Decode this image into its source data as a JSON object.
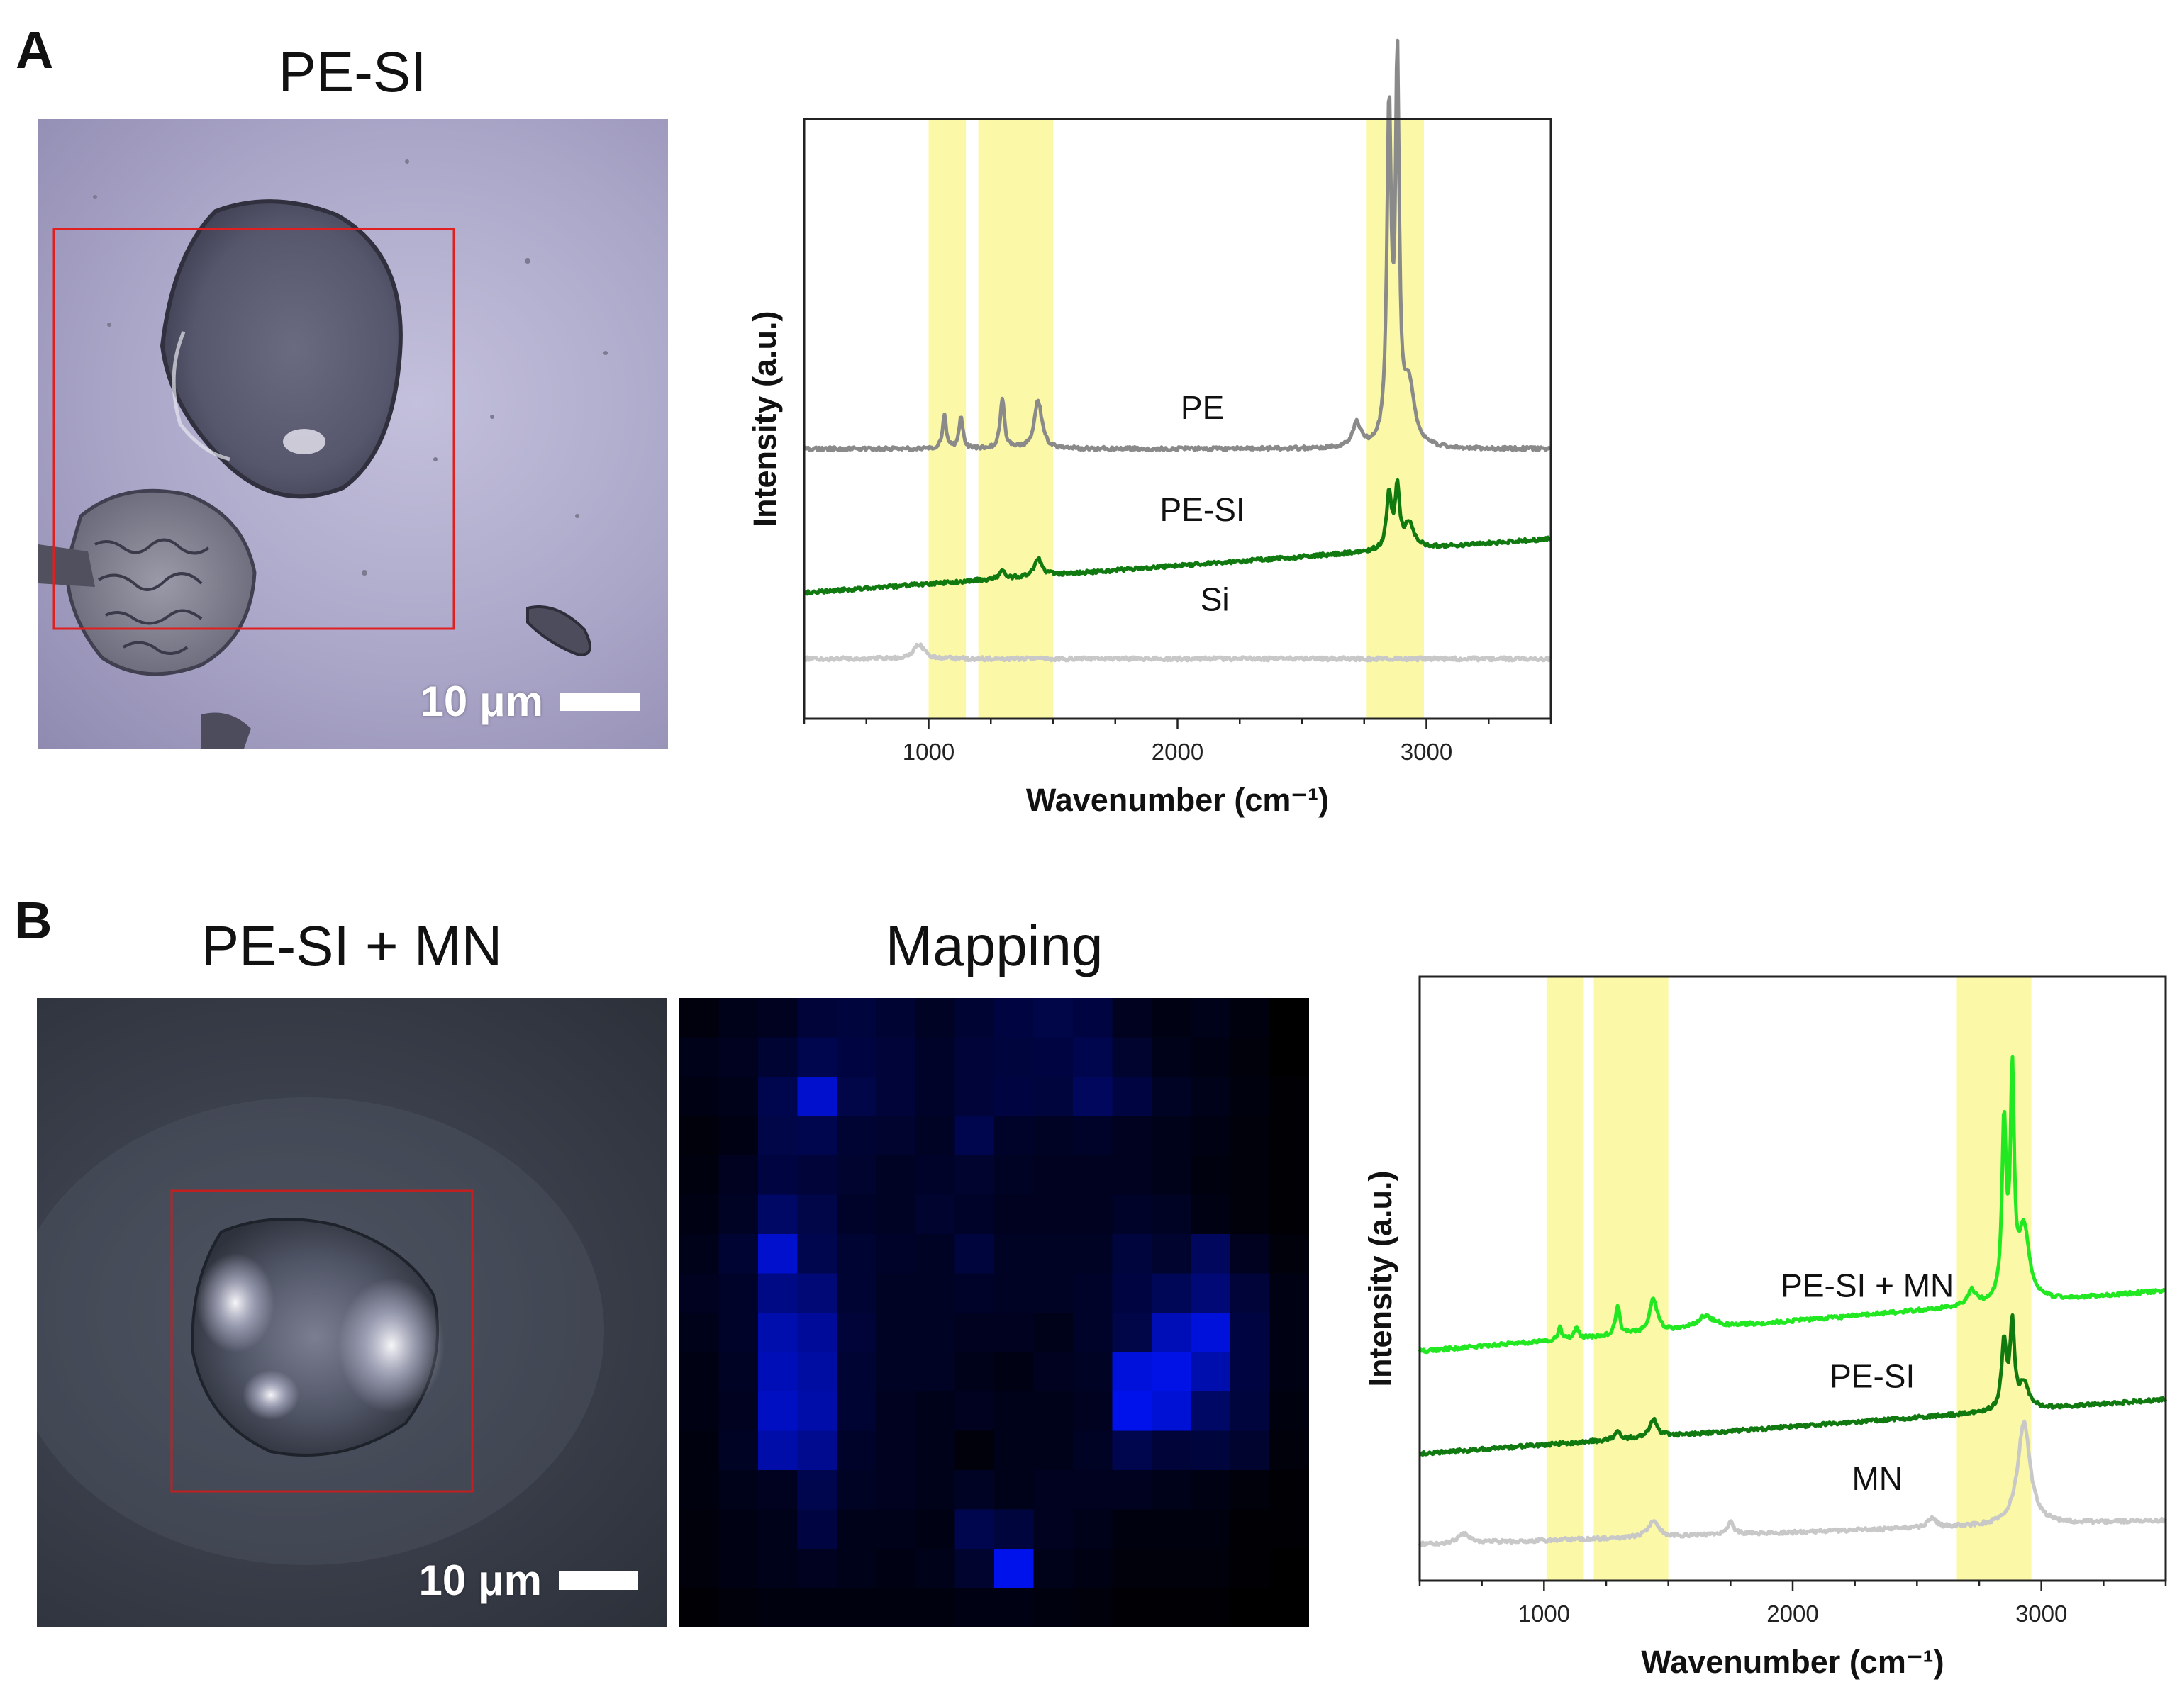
{
  "panel_a": {
    "letter": "A",
    "image_title": "PE-SI",
    "scale_bar": "10 μm"
  },
  "panel_b": {
    "letter": "B",
    "image_title": "PE-SI + MN",
    "mapping_title": "Mapping",
    "scale_bar": "10 μm",
    "mapping": {
      "colormap": [
        "#000000",
        "#0000ff"
      ],
      "values": [
        [
          0.05,
          0.1,
          0.12,
          0.22,
          0.24,
          0.2,
          0.14,
          0.2,
          0.26,
          0.28,
          0.26,
          0.12,
          0.08,
          0.1,
          0.06,
          0.0
        ],
        [
          0.1,
          0.12,
          0.2,
          0.3,
          0.26,
          0.22,
          0.16,
          0.22,
          0.24,
          0.26,
          0.3,
          0.18,
          0.1,
          0.08,
          0.04,
          0.0
        ],
        [
          0.08,
          0.1,
          0.3,
          0.8,
          0.28,
          0.22,
          0.16,
          0.22,
          0.26,
          0.24,
          0.36,
          0.26,
          0.14,
          0.1,
          0.06,
          0.02
        ],
        [
          0.04,
          0.08,
          0.28,
          0.3,
          0.2,
          0.18,
          0.14,
          0.3,
          0.16,
          0.14,
          0.16,
          0.12,
          0.1,
          0.08,
          0.04,
          0.02
        ],
        [
          0.06,
          0.12,
          0.26,
          0.22,
          0.18,
          0.14,
          0.16,
          0.18,
          0.14,
          0.12,
          0.12,
          0.12,
          0.1,
          0.06,
          0.04,
          0.02
        ],
        [
          0.08,
          0.14,
          0.4,
          0.28,
          0.16,
          0.14,
          0.18,
          0.16,
          0.12,
          0.12,
          0.12,
          0.16,
          0.14,
          0.08,
          0.04,
          0.02
        ],
        [
          0.1,
          0.2,
          0.8,
          0.3,
          0.2,
          0.16,
          0.14,
          0.24,
          0.14,
          0.14,
          0.14,
          0.24,
          0.18,
          0.36,
          0.12,
          0.04
        ],
        [
          0.12,
          0.16,
          0.52,
          0.46,
          0.2,
          0.14,
          0.14,
          0.16,
          0.14,
          0.14,
          0.16,
          0.26,
          0.34,
          0.46,
          0.22,
          0.08
        ],
        [
          0.1,
          0.16,
          0.68,
          0.6,
          0.22,
          0.14,
          0.14,
          0.12,
          0.12,
          0.1,
          0.16,
          0.28,
          0.72,
          0.86,
          0.26,
          0.08
        ],
        [
          0.08,
          0.14,
          0.72,
          0.64,
          0.2,
          0.14,
          0.14,
          0.1,
          0.08,
          0.12,
          0.14,
          0.86,
          0.9,
          0.68,
          0.26,
          0.08
        ],
        [
          0.08,
          0.12,
          0.76,
          0.66,
          0.2,
          0.12,
          0.1,
          0.12,
          0.1,
          0.1,
          0.12,
          0.92,
          0.84,
          0.4,
          0.24,
          0.06
        ],
        [
          0.06,
          0.14,
          0.66,
          0.56,
          0.16,
          0.12,
          0.1,
          0.04,
          0.1,
          0.1,
          0.14,
          0.3,
          0.22,
          0.24,
          0.18,
          0.04
        ],
        [
          0.06,
          0.1,
          0.12,
          0.3,
          0.14,
          0.12,
          0.1,
          0.14,
          0.1,
          0.12,
          0.12,
          0.12,
          0.1,
          0.08,
          0.04,
          0.02
        ],
        [
          0.04,
          0.08,
          0.1,
          0.26,
          0.1,
          0.1,
          0.08,
          0.3,
          0.24,
          0.12,
          0.1,
          0.06,
          0.06,
          0.06,
          0.02,
          0.02
        ],
        [
          0.04,
          0.08,
          0.1,
          0.12,
          0.1,
          0.08,
          0.1,
          0.18,
          0.92,
          0.1,
          0.08,
          0.04,
          0.04,
          0.04,
          0.02,
          0.0
        ],
        [
          0.02,
          0.04,
          0.06,
          0.06,
          0.06,
          0.06,
          0.06,
          0.08,
          0.08,
          0.06,
          0.04,
          0.02,
          0.02,
          0.02,
          0.0,
          0.0
        ]
      ]
    }
  },
  "chart_data": [
    {
      "type": "line",
      "panel": "A",
      "xlabel": "Wavenumber (cm⁻¹)",
      "ylabel": "Intensity (a.u.)",
      "xlim": [
        500,
        3500
      ],
      "xticks": [
        1000,
        2000,
        3000
      ],
      "y_axis_ticks_shown": false,
      "grid": false,
      "highlight_bands": [
        [
          1000,
          1150
        ],
        [
          1200,
          1500
        ],
        [
          2760,
          2990
        ]
      ],
      "highlight_color": "#fbf9a8",
      "series": [
        {
          "name": "PE",
          "color": "#8a8a8a",
          "baseline": 0.45,
          "peaks": [
            [
              1063,
              0.055,
              9
            ],
            [
              1130,
              0.055,
              9
            ],
            [
              1296,
              0.085,
              10
            ],
            [
              1440,
              0.08,
              18
            ],
            [
              2720,
              0.04,
              20
            ],
            [
              2850,
              0.55,
              10
            ],
            [
              2883,
              0.62,
              9
            ],
            [
              2930,
              0.1,
              25
            ]
          ]
        },
        {
          "name": "PE-SI",
          "color": "#107a10",
          "baseline": 0.21,
          "baseline_end": 0.3,
          "peaks": [
            [
              1296,
              0.015,
              10
            ],
            [
              1440,
              0.03,
              18
            ],
            [
              2850,
              0.09,
              12
            ],
            [
              2883,
              0.1,
              10
            ],
            [
              2930,
              0.04,
              25
            ]
          ]
        },
        {
          "name": "Si",
          "color": "#c8c8c8",
          "baseline": 0.1,
          "peaks": [
            [
              960,
              0.025,
              25
            ]
          ]
        }
      ]
    },
    {
      "type": "line",
      "panel": "B",
      "xlabel": "Wavenumber (cm⁻¹)",
      "ylabel": "Intensity (a.u.)",
      "xlim": [
        500,
        3500
      ],
      "xticks": [
        1000,
        2000,
        3000
      ],
      "y_axis_ticks_shown": false,
      "grid": false,
      "highlight_bands": [
        [
          1010,
          1160
        ],
        [
          1200,
          1500
        ],
        [
          2660,
          2960
        ]
      ],
      "highlight_color": "#fbf9a8",
      "series": [
        {
          "name": "PE-SI + MN",
          "color": "#22e822",
          "baseline": 0.38,
          "baseline_end": 0.48,
          "peaks": [
            [
              1063,
              0.02,
              9
            ],
            [
              1130,
              0.02,
              9
            ],
            [
              1296,
              0.05,
              10
            ],
            [
              1440,
              0.055,
              18
            ],
            [
              1650,
              0.02,
              40
            ],
            [
              2720,
              0.025,
              20
            ],
            [
              2850,
              0.29,
              10
            ],
            [
              2883,
              0.36,
              9
            ],
            [
              2930,
              0.12,
              25
            ]
          ]
        },
        {
          "name": "PE-SI",
          "color": "#107a10",
          "baseline": 0.21,
          "baseline_end": 0.3,
          "peaks": [
            [
              1296,
              0.015,
              10
            ],
            [
              1440,
              0.03,
              18
            ],
            [
              2850,
              0.11,
              12
            ],
            [
              2883,
              0.14,
              10
            ],
            [
              2930,
              0.04,
              25
            ]
          ]
        },
        {
          "name": "MN",
          "color": "#c8c8c8",
          "baseline": 0.06,
          "baseline_end": 0.1,
          "peaks": [
            [
              680,
              0.015,
              30
            ],
            [
              1440,
              0.025,
              25
            ],
            [
              1750,
              0.02,
              15
            ],
            [
              2560,
              0.015,
              20
            ],
            [
              2930,
              0.17,
              30
            ]
          ]
        }
      ]
    }
  ]
}
